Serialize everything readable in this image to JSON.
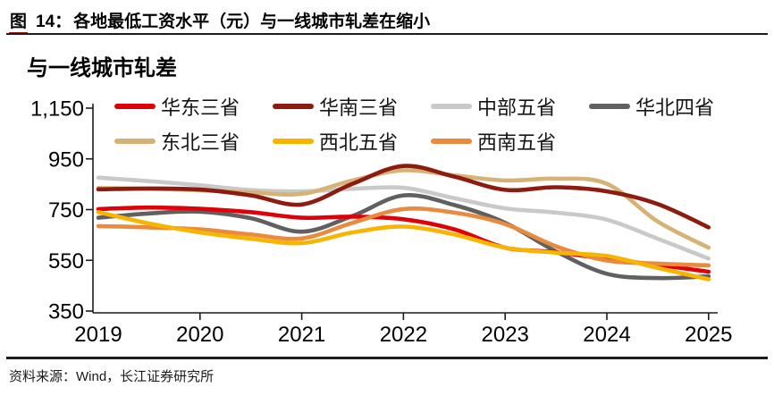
{
  "figure": {
    "label": "图",
    "number": "14：",
    "title": "各地最低工资水平（元）与一线城市轧差在缩小"
  },
  "chart_data": {
    "type": "line",
    "title": "与一线城市轧差",
    "x": [
      2019,
      2019.5,
      2020,
      2020.5,
      2021,
      2021.5,
      2022,
      2022.5,
      2023,
      2023.5,
      2024,
      2024.5,
      2025
    ],
    "xticks": [
      2019,
      2020,
      2021,
      2022,
      2023,
      2024,
      2025
    ],
    "xtick_labels": [
      "2019",
      "2020",
      "2021",
      "2022",
      "2023",
      "2024",
      "2025"
    ],
    "ylim": [
      350,
      1150
    ],
    "yticks": [
      350,
      550,
      750,
      950,
      1150
    ],
    "ytick_labels": [
      "350",
      "550",
      "750",
      "950",
      "1,150"
    ],
    "grid": false,
    "legend_position": "top-left two rows",
    "axis_color": "#1c1c1c",
    "series": [
      {
        "name": "华东三省",
        "color": "#e00007",
        "values": [
          752,
          758,
          753,
          740,
          718,
          722,
          712,
          672,
          600,
          582,
          555,
          532,
          505
        ]
      },
      {
        "name": "华南三省",
        "color": "#8e1b10",
        "values": [
          830,
          833,
          829,
          806,
          770,
          852,
          922,
          880,
          828,
          838,
          822,
          772,
          680
        ]
      },
      {
        "name": "中部五省",
        "color": "#c9c9c9",
        "values": [
          876,
          862,
          846,
          827,
          822,
          832,
          836,
          795,
          755,
          738,
          710,
          635,
          557
        ]
      },
      {
        "name": "华北四省",
        "color": "#606060",
        "values": [
          718,
          735,
          742,
          716,
          663,
          725,
          806,
          768,
          698,
          585,
          497,
          480,
          487
        ]
      },
      {
        "name": "东北三省",
        "color": "#d7b277",
        "values": [
          835,
          832,
          826,
          818,
          812,
          865,
          905,
          885,
          865,
          872,
          852,
          703,
          600
        ]
      },
      {
        "name": "西北五省",
        "color": "#f7b500",
        "values": [
          740,
          695,
          660,
          635,
          618,
          660,
          683,
          652,
          600,
          580,
          567,
          520,
          475
        ]
      },
      {
        "name": "西南五省",
        "color": "#e98b3e",
        "values": [
          685,
          680,
          672,
          652,
          636,
          698,
          752,
          738,
          693,
          605,
          549,
          537,
          530
        ]
      }
    ]
  },
  "footer": {
    "source": "资料来源：Wind，长江证券研究所"
  }
}
